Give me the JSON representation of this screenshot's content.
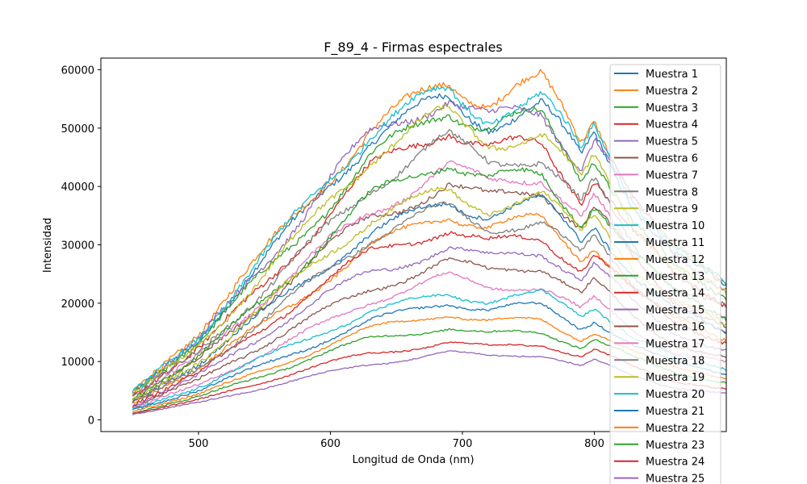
{
  "chart_data": {
    "type": "line",
    "title": "F_89_4 - Firmas espectrales",
    "xlabel": "Longitud de Onda (nm)",
    "ylabel": "Intensidad",
    "xlim": [
      426,
      900
    ],
    "ylim": [
      -2000,
      62000
    ],
    "xticks": [
      500,
      600,
      700,
      800
    ],
    "yticks": [
      0,
      10000,
      20000,
      30000,
      40000,
      50000,
      60000
    ],
    "grid": false,
    "legend_position": "top-right",
    "x_range": [
      450,
      900
    ],
    "profile_shape": {
      "x": [
        450,
        500,
        550,
        600,
        630,
        660,
        680,
        690,
        700,
        720,
        740,
        760,
        780,
        790,
        800,
        815,
        830,
        860,
        900
      ],
      "rel": [
        0.08,
        0.25,
        0.48,
        0.72,
        0.85,
        0.93,
        0.98,
        1.0,
        0.97,
        0.93,
        0.95,
        0.96,
        0.85,
        0.79,
        0.87,
        0.76,
        0.65,
        0.5,
        0.4
      ]
    },
    "series": [
      {
        "name": "Muestra 1",
        "color": "#1f77b4",
        "peak": 56000
      },
      {
        "name": "Muestra 2",
        "color": "#ff7f0e",
        "peak": 59000
      },
      {
        "name": "Muestra 3",
        "color": "#2ca02c",
        "peak": 53000
      },
      {
        "name": "Muestra 4",
        "color": "#d62728",
        "peak": 49500
      },
      {
        "name": "Muestra 5",
        "color": "#9467bd",
        "peak": 56000
      },
      {
        "name": "Muestra 6",
        "color": "#8c564b",
        "peak": 41000
      },
      {
        "name": "Muestra 7",
        "color": "#e377c2",
        "peak": 43000
      },
      {
        "name": "Muestra 8",
        "color": "#7f7f7f",
        "peak": 47000
      },
      {
        "name": "Muestra 9",
        "color": "#bcbd22",
        "peak": 52000
      },
      {
        "name": "Muestra 10",
        "color": "#17becf",
        "peak": 57500
      },
      {
        "name": "Muestra 11",
        "color": "#1f77b4",
        "peak": 38000
      },
      {
        "name": "Muestra 12",
        "color": "#ff7f0e",
        "peak": 35000
      },
      {
        "name": "Muestra 13",
        "color": "#2ca02c",
        "peak": 44000
      },
      {
        "name": "Muestra 14",
        "color": "#d62728",
        "peak": 33000
      },
      {
        "name": "Muestra 15",
        "color": "#9467bd",
        "peak": 30000
      },
      {
        "name": "Muestra 16",
        "color": "#8c564b",
        "peak": 27000
      },
      {
        "name": "Muestra 17",
        "color": "#e377c2",
        "peak": 24000
      },
      {
        "name": "Muestra 18",
        "color": "#7f7f7f",
        "peak": 36000
      },
      {
        "name": "Muestra 19",
        "color": "#bcbd22",
        "peak": 40000
      },
      {
        "name": "Muestra 20",
        "color": "#17becf",
        "peak": 22000
      },
      {
        "name": "Muestra 21",
        "color": "#1f77b4",
        "peak": 20000
      },
      {
        "name": "Muestra 22",
        "color": "#ff7f0e",
        "peak": 18000
      },
      {
        "name": "Muestra 23",
        "color": "#2ca02c",
        "peak": 16000
      },
      {
        "name": "Muestra 24",
        "color": "#d62728",
        "peak": 13500
      },
      {
        "name": "Muestra 25",
        "color": "#9467bd",
        "peak": 11500
      }
    ]
  }
}
